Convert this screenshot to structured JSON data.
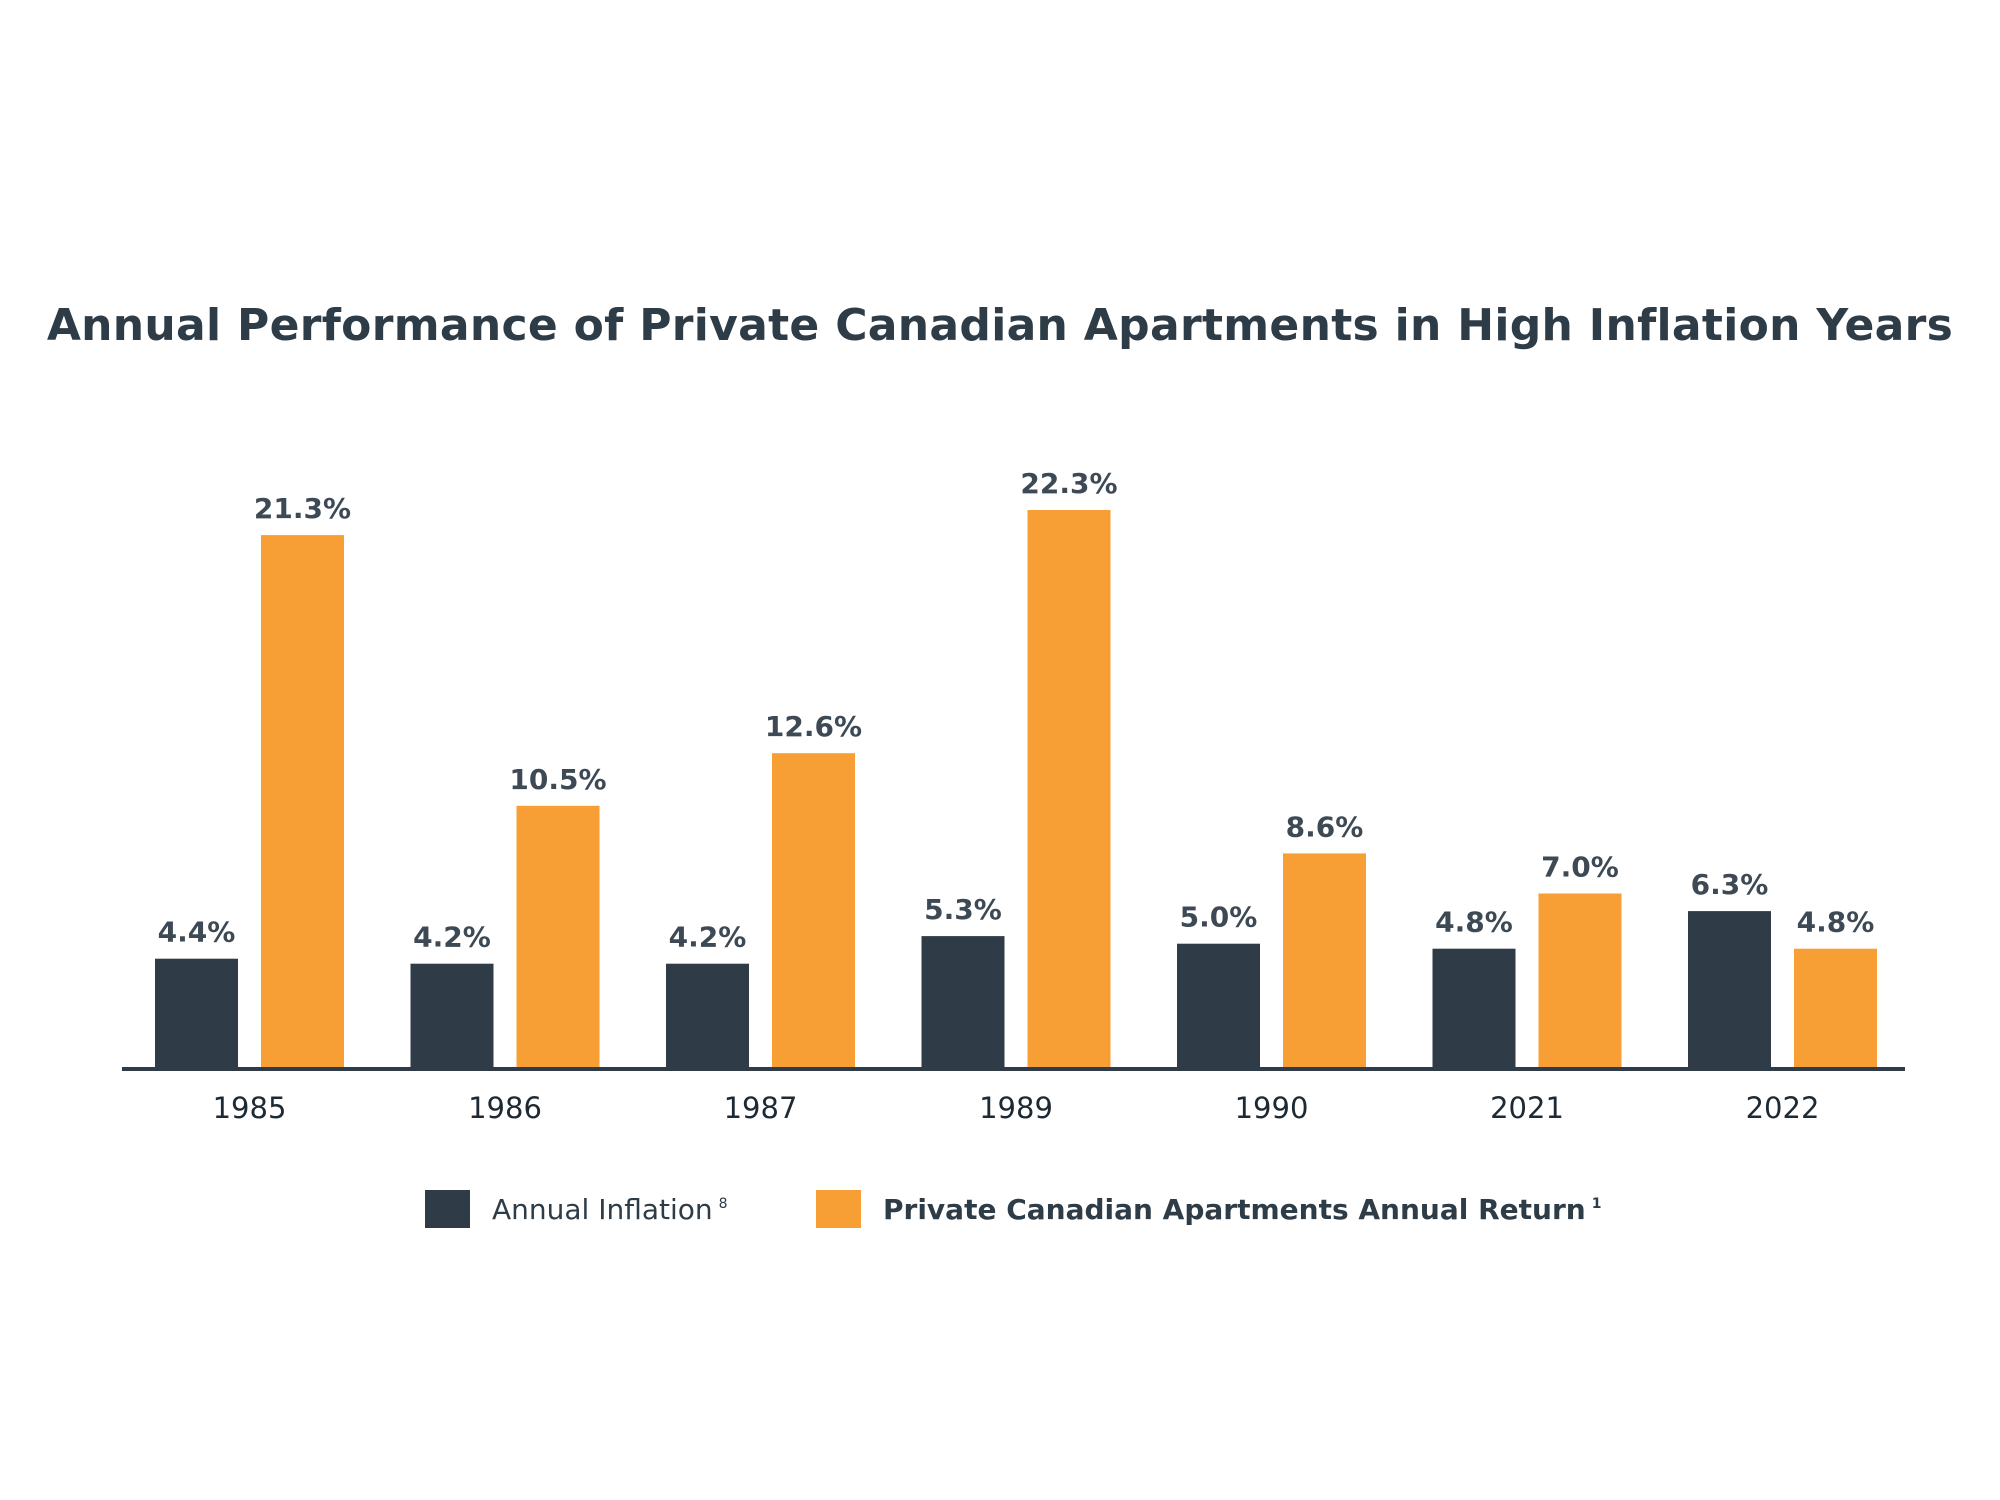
{
  "chart_data": {
    "type": "bar",
    "title": "Annual Performance of Private Canadian Apartments in High Inflation Years",
    "categories": [
      "1985",
      "1986",
      "1987",
      "1989",
      "1990",
      "2021",
      "2022"
    ],
    "series": [
      {
        "name": "Annual Inflation",
        "footnote": "8",
        "color": "#2f3c47",
        "values": [
          4.4,
          4.2,
          4.2,
          5.3,
          5.0,
          4.8,
          6.3
        ],
        "labels": [
          "4.4%",
          "4.2%",
          "4.2%",
          "5.3%",
          "5.0%",
          "4.8%",
          "6.3%"
        ]
      },
      {
        "name": "Private Canadian Apartments Annual Return",
        "footnote": "1",
        "color": "#f79f35",
        "values": [
          21.3,
          10.5,
          12.6,
          22.3,
          8.6,
          7.0,
          4.8
        ],
        "labels": [
          "21.3%",
          "10.5%",
          "12.6%",
          "22.3%",
          "8.6%",
          "7.0%",
          "4.8%"
        ]
      }
    ],
    "ylim": [
      0,
      22.3
    ],
    "grid": false,
    "legend": "bottom"
  }
}
